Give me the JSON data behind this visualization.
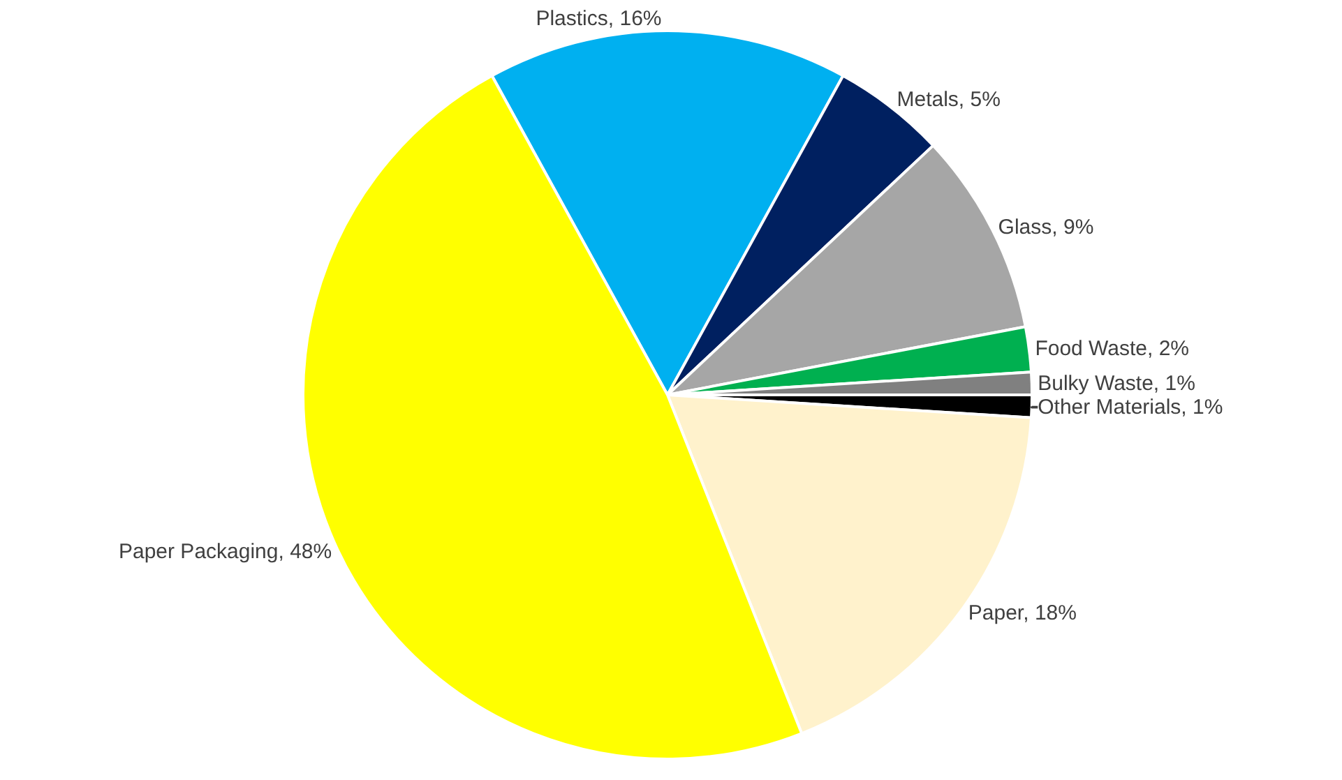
{
  "chart_data": {
    "type": "pie",
    "categories": [
      "Plastics",
      "Metals",
      "Glass",
      "Food Waste",
      "Bulky Waste",
      "Other Materials",
      "Paper",
      "Paper Packaging"
    ],
    "values": [
      16,
      5,
      9,
      2,
      1,
      1,
      18,
      48
    ],
    "value_labels": [
      "16%",
      "5%",
      "9%",
      "2%",
      "1%",
      "1%",
      "18%",
      "48%"
    ],
    "colors": [
      "#00b0f0",
      "#002060",
      "#a6a6a6",
      "#00b050",
      "#808080",
      "#000000",
      "#fff2cc",
      "#ffff00"
    ],
    "legend": false
  }
}
